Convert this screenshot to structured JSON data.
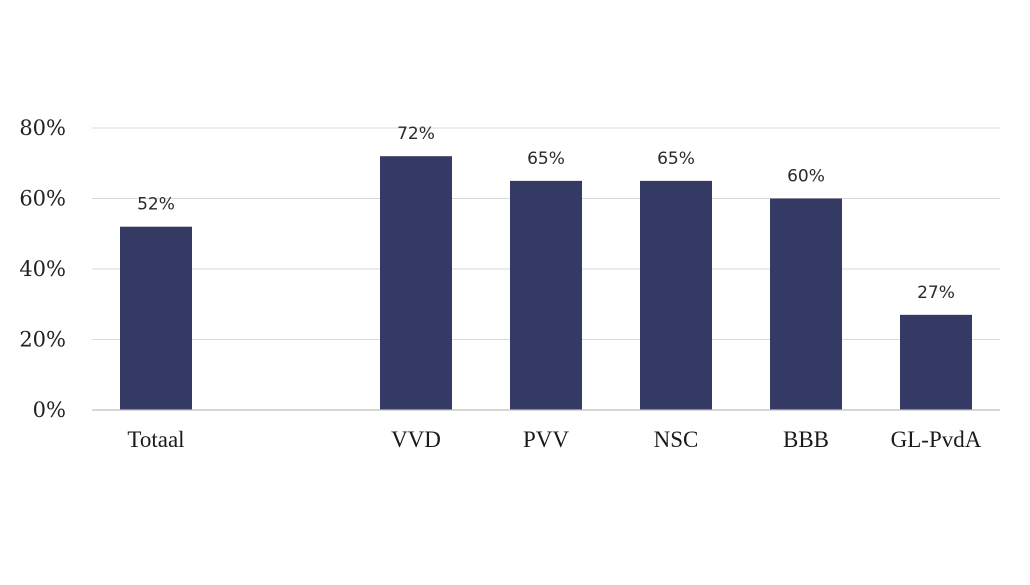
{
  "chart_data": {
    "type": "bar",
    "categories": [
      "Totaal",
      "VVD",
      "PVV",
      "NSC",
      "BBB",
      "GL-PvdA"
    ],
    "values": [
      52,
      72,
      65,
      65,
      60,
      27
    ],
    "data_labels": [
      "52%",
      "72%",
      "65%",
      "65%",
      "60%",
      "27%"
    ],
    "ylim": [
      0,
      80
    ],
    "yticks": [
      0,
      20,
      40,
      60,
      80
    ],
    "ytick_labels": [
      "0%",
      "20%",
      "40%",
      "60%",
      "80%"
    ],
    "grid": true,
    "legend": "none",
    "title": "",
    "xlabel": "",
    "ylabel": "",
    "bar_color": "#343a63"
  }
}
